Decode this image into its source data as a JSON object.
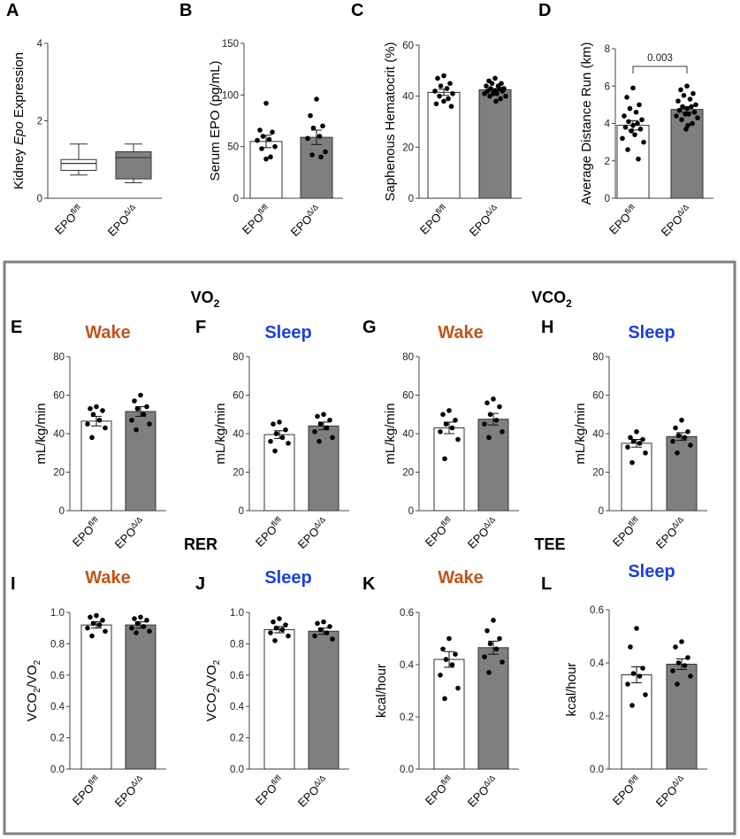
{
  "colors": {
    "wake": "#c0541a",
    "sleep": "#1a3fe0",
    "filled_bar": "#7f7f7f",
    "frame": "#808080"
  },
  "sections": {
    "vo2": "VO",
    "vo2_sub": "2",
    "vco2": "VCO",
    "vco2_sub": "2",
    "rer": "RER",
    "tee": "TEE"
  },
  "conditions": {
    "wake": "Wake",
    "sleep": "Sleep"
  },
  "group_labels": {
    "base": "EPO",
    "control_sup": "fl/fl",
    "ko_sup": "Δ/Δ"
  },
  "chart_data": [
    {
      "id": "A",
      "type": "box",
      "panel_label": "A",
      "ylabel_pre": "Kidney ",
      "ylabel_em": "Epo",
      "ylabel_post": " Expression",
      "ylim": [
        0,
        4
      ],
      "yticks": [
        "0",
        "2",
        "4"
      ],
      "yticks_val": [
        0,
        2,
        4
      ],
      "series": [
        {
          "name": "EPOfl/fl",
          "min": 0.6,
          "q1": 0.72,
          "median": 0.9,
          "q3": 1.0,
          "max": 1.4
        },
        {
          "name": "EPOΔ/Δ",
          "min": 0.4,
          "q1": 0.5,
          "median": 1.05,
          "q3": 1.2,
          "max": 1.4
        }
      ]
    },
    {
      "id": "B",
      "type": "bar",
      "panel_label": "B",
      "ylabel": "Serum EPO (pg/mL)",
      "ylim": [
        0,
        150
      ],
      "yticks": [
        "0",
        "50",
        "100",
        "150"
      ],
      "yticks_val": [
        0,
        50,
        100,
        150
      ],
      "series": [
        {
          "name": "EPOfl/fl",
          "mean": 55,
          "sem": 6,
          "points": [
            92,
            66,
            64,
            60,
            57,
            56,
            50,
            48,
            40,
            38
          ]
        },
        {
          "name": "EPOΔ/Δ",
          "mean": 59,
          "sem": 7,
          "points": [
            96,
            80,
            70,
            68,
            60,
            58,
            45,
            42,
            40
          ]
        }
      ]
    },
    {
      "id": "C",
      "type": "bar",
      "panel_label": "C",
      "ylabel": "Saphenous Hematocrit (%)",
      "ylim": [
        0,
        60
      ],
      "yticks": [
        "0",
        "20",
        "40",
        "60"
      ],
      "yticks_val": [
        0,
        20,
        40,
        60
      ],
      "series": [
        {
          "name": "EPOfl/fl",
          "mean": 41.5,
          "sem": 1.2,
          "points": [
            48,
            47,
            45,
            44,
            43,
            42,
            41,
            40,
            39,
            38,
            37,
            36
          ]
        },
        {
          "name": "EPOΔ/Δ",
          "mean": 42.5,
          "sem": 0.5,
          "points": [
            47,
            46,
            45,
            45,
            44,
            44,
            43,
            43,
            43,
            42,
            42,
            42,
            41,
            41,
            41,
            40,
            40,
            39,
            38
          ]
        }
      ]
    },
    {
      "id": "D",
      "type": "bar",
      "panel_label": "D",
      "ylabel": "Average Distance Run (km)",
      "ylim": [
        0,
        8
      ],
      "yticks": [
        "0",
        "2",
        "4",
        "6",
        "8"
      ],
      "yticks_val": [
        0,
        2,
        4,
        6,
        8
      ],
      "annotation": "0.003",
      "series": [
        {
          "name": "EPOfl/fl",
          "mean": 3.9,
          "sem": 0.25,
          "points": [
            5.9,
            5.4,
            5.0,
            4.8,
            4.6,
            4.4,
            4.2,
            4.1,
            4.0,
            3.9,
            3.8,
            3.7,
            3.6,
            3.4,
            3.2,
            3.0,
            2.6,
            2.1
          ]
        },
        {
          "name": "EPOΔ/Δ",
          "mean": 4.75,
          "sem": 0.15,
          "points": [
            6.0,
            5.8,
            5.6,
            5.5,
            5.3,
            5.2,
            5.0,
            4.9,
            4.9,
            4.8,
            4.7,
            4.6,
            4.5,
            4.5,
            4.4,
            4.3,
            4.2,
            4.0,
            3.9,
            3.7
          ]
        }
      ]
    },
    {
      "id": "E",
      "type": "bar",
      "panel_label": "E",
      "condition": "wake",
      "ylabel": "mL/kg/min",
      "ylim": [
        0,
        80
      ],
      "yticks": [
        "0",
        "20",
        "40",
        "60",
        "80"
      ],
      "yticks_val": [
        0,
        20,
        40,
        60,
        80
      ],
      "series": [
        {
          "name": "EPOfl/fl",
          "mean": 46.5,
          "sem": 2.5,
          "points": [
            54,
            53,
            52,
            50,
            47,
            45,
            43,
            38
          ]
        },
        {
          "name": "EPOΔ/Δ",
          "mean": 51.5,
          "sem": 2.5,
          "points": [
            60,
            57,
            54,
            53,
            50,
            47,
            45,
            42
          ]
        }
      ]
    },
    {
      "id": "F",
      "type": "bar",
      "panel_label": "F",
      "condition": "sleep",
      "ylabel": "mL/kg/min",
      "ylim": [
        0,
        80
      ],
      "yticks": [
        "0",
        "20",
        "40",
        "60",
        "80"
      ],
      "yticks_val": [
        0,
        20,
        40,
        60,
        80
      ],
      "series": [
        {
          "name": "EPOfl/fl",
          "mean": 39.5,
          "sem": 2,
          "points": [
            46,
            45,
            42,
            40,
            38,
            36,
            35,
            31
          ]
        },
        {
          "name": "EPOΔ/Δ",
          "mean": 44,
          "sem": 2,
          "points": [
            50,
            49,
            47,
            45,
            43,
            41,
            38,
            36
          ]
        }
      ]
    },
    {
      "id": "G",
      "type": "bar",
      "panel_label": "G",
      "condition": "wake",
      "ylabel": "mL/kg/min",
      "ylim": [
        0,
        80
      ],
      "yticks": [
        "0",
        "20",
        "40",
        "60",
        "80"
      ],
      "yticks_val": [
        0,
        20,
        40,
        60,
        80
      ],
      "series": [
        {
          "name": "EPOfl/fl",
          "mean": 43,
          "sem": 3,
          "points": [
            52,
            50,
            47,
            45,
            43,
            41,
            37,
            27
          ]
        },
        {
          "name": "EPOΔ/Δ",
          "mean": 47.5,
          "sem": 3,
          "points": [
            58,
            56,
            54,
            50,
            47,
            45,
            41,
            38
          ]
        }
      ]
    },
    {
      "id": "H",
      "type": "bar",
      "panel_label": "H",
      "condition": "sleep",
      "ylabel": "mL/kg/min",
      "ylim": [
        0,
        80
      ],
      "yticks": [
        "0",
        "20",
        "40",
        "60",
        "80"
      ],
      "yticks_val": [
        0,
        20,
        40,
        60,
        80
      ],
      "series": [
        {
          "name": "EPOfl/fl",
          "mean": 35,
          "sem": 2,
          "points": [
            41,
            38,
            37,
            36,
            35,
            33,
            30,
            25
          ]
        },
        {
          "name": "EPOΔ/Δ",
          "mean": 38.5,
          "sem": 2,
          "points": [
            47,
            43,
            41,
            39,
            38,
            36,
            34,
            30
          ]
        }
      ]
    },
    {
      "id": "I",
      "type": "bar",
      "panel_label": "I",
      "condition": "wake",
      "ylabel_pre": "VCO",
      "ylabel_sub1": "2",
      "ylabel_mid": "/VO",
      "ylabel_sub2": "2",
      "ylim": [
        0,
        1.0
      ],
      "yticks": [
        "0.0",
        "0.2",
        "0.4",
        "0.6",
        "0.8",
        "1.0"
      ],
      "yticks_val": [
        0,
        0.2,
        0.4,
        0.6,
        0.8,
        1.0
      ],
      "series": [
        {
          "name": "EPOfl/fl",
          "mean": 0.92,
          "sem": 0.02,
          "points": [
            0.98,
            0.97,
            0.95,
            0.93,
            0.92,
            0.9,
            0.88,
            0.85
          ]
        },
        {
          "name": "EPOΔ/Δ",
          "mean": 0.92,
          "sem": 0.02,
          "points": [
            0.97,
            0.96,
            0.95,
            0.93,
            0.91,
            0.9,
            0.88,
            0.87
          ]
        }
      ]
    },
    {
      "id": "J",
      "type": "bar",
      "panel_label": "J",
      "condition": "sleep",
      "ylabel_pre": "VCO",
      "ylabel_sub1": "2",
      "ylabel_mid": "/VO",
      "ylabel_sub2": "2",
      "ylim": [
        0,
        1.0
      ],
      "yticks": [
        "0.0",
        "0.2",
        "0.4",
        "0.6",
        "0.8",
        "1.0"
      ],
      "yticks_val": [
        0,
        0.2,
        0.4,
        0.6,
        0.8,
        1.0
      ],
      "series": [
        {
          "name": "EPOfl/fl",
          "mean": 0.89,
          "sem": 0.02,
          "points": [
            0.96,
            0.94,
            0.92,
            0.9,
            0.89,
            0.87,
            0.85,
            0.82
          ]
        },
        {
          "name": "EPOΔ/Δ",
          "mean": 0.88,
          "sem": 0.02,
          "points": [
            0.94,
            0.93,
            0.91,
            0.89,
            0.87,
            0.85,
            0.83
          ]
        }
      ]
    },
    {
      "id": "K",
      "type": "bar",
      "panel_label": "K",
      "condition": "wake",
      "ylabel": "kcal/hour",
      "ylim": [
        0,
        0.6
      ],
      "yticks": [
        "0.0",
        "0.2",
        "0.4",
        "0.6"
      ],
      "yticks_val": [
        0,
        0.2,
        0.4,
        0.6
      ],
      "series": [
        {
          "name": "EPOfl/fl",
          "mean": 0.42,
          "sem": 0.03,
          "points": [
            0.5,
            0.46,
            0.44,
            0.42,
            0.4,
            0.36,
            0.31,
            0.27
          ]
        },
        {
          "name": "EPOΔ/Δ",
          "mean": 0.465,
          "sem": 0.025,
          "points": [
            0.57,
            0.53,
            0.5,
            0.48,
            0.46,
            0.43,
            0.41,
            0.37
          ]
        }
      ]
    },
    {
      "id": "L",
      "type": "bar",
      "panel_label": "L",
      "condition": "sleep",
      "ylabel": "kcal/hour",
      "ylim": [
        0,
        0.6
      ],
      "yticks": [
        "0.0",
        "0.2",
        "0.4",
        "0.6"
      ],
      "yticks_val": [
        0,
        0.2,
        0.4,
        0.6
      ],
      "series": [
        {
          "name": "EPOfl/fl",
          "mean": 0.355,
          "sem": 0.03,
          "points": [
            0.53,
            0.46,
            0.38,
            0.36,
            0.35,
            0.32,
            0.28,
            0.24
          ]
        },
        {
          "name": "EPOΔ/Δ",
          "mean": 0.395,
          "sem": 0.02,
          "points": [
            0.48,
            0.46,
            0.42,
            0.4,
            0.39,
            0.37,
            0.35,
            0.32
          ]
        }
      ]
    }
  ]
}
